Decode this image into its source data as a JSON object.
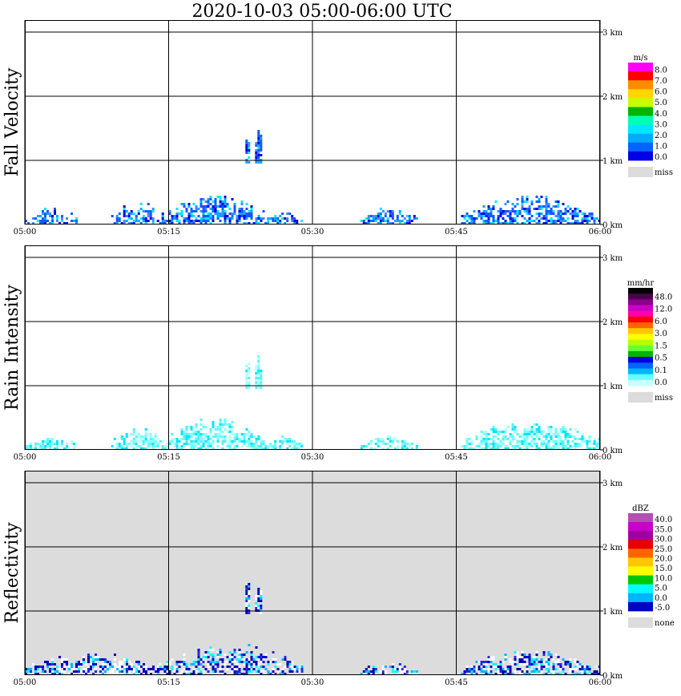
{
  "title": "2020-10-03   05:00-06:00 UTC",
  "time_ticks": [
    "05:00",
    "05:15",
    "05:30",
    "05:45",
    "06:00"
  ],
  "height_ticks": [
    "0 km",
    "1 km",
    "2 km",
    "3 km"
  ],
  "panels": [
    {
      "id": "fall-velocity",
      "ylabel": "Fall Velocity",
      "background": "#ffffff",
      "legend_unit": "m/s",
      "legend_colors": [
        "#ff00ff",
        "#ff0000",
        "#ff8c00",
        "#ffd700",
        "#c8ff00",
        "#00b400",
        "#00ffb4",
        "#00e6ff",
        "#00aaff",
        "#0064ff",
        "#0000e6"
      ],
      "legend_labels": [
        "8.0",
        "7.0",
        "6.0",
        "5.0",
        "4.0",
        "3.0",
        "2.0",
        "1.0",
        "0.0"
      ],
      "missing_label": "miss"
    },
    {
      "id": "rain-intensity",
      "ylabel": "Rain Intensity",
      "background": "#ffffff",
      "legend_unit": "mm/hr",
      "legend_colors": [
        "#000000",
        "#4b004b",
        "#8c008c",
        "#c800c8",
        "#ff00aa",
        "#ff0000",
        "#ff6400",
        "#ffc800",
        "#ffff00",
        "#b4ff00",
        "#64ff32",
        "#00b400",
        "#0000dc",
        "#0064ff",
        "#00b4ff",
        "#64ffff",
        "#c8ffff"
      ],
      "legend_labels": [
        "48.0",
        "12.0",
        "6.0",
        "3.0",
        "1.5",
        "0.5",
        "0.1",
        "0.0"
      ],
      "missing_label": "miss"
    },
    {
      "id": "reflectivity",
      "ylabel": "Reflectivity",
      "background": "#dcdcdc",
      "legend_unit": "dBZ",
      "legend_colors": [
        "#b450b4",
        "#c800c8",
        "#a000a0",
        "#e60000",
        "#ff6400",
        "#ffc800",
        "#ffff00",
        "#00c800",
        "#00ffff",
        "#00b4ff",
        "#0000c8"
      ],
      "legend_labels": [
        "40.0",
        "35.0",
        "30.0",
        "25.0",
        "20.0",
        "15.0",
        "10.0",
        "5.0",
        "0.0",
        "-5.0"
      ],
      "missing_label": "none"
    }
  ],
  "chart_data": [
    {
      "type": "heatmap",
      "title": "2020-10-03   05:00-06:00 UTC",
      "ylabel": "Fall Velocity",
      "xlim": [
        "05:00",
        "06:00"
      ],
      "ylim": [
        0,
        3.2
      ],
      "colorbar_unit": "m/s",
      "colorbar_ticks": [
        8.0,
        7.0,
        6.0,
        5.0,
        4.0,
        3.0,
        2.0,
        1.0,
        0.0
      ],
      "grid": true,
      "echo_regions": [
        {
          "t_start": 0.0,
          "t_end": 5.5,
          "top_km": 0.25,
          "typical_value": "1.0-2.0"
        },
        {
          "t_start": 9.0,
          "t_end": 14.5,
          "top_km": 0.35,
          "typical_value": "1.0-2.0"
        },
        {
          "t_start": 14.5,
          "t_end": 25.0,
          "top_km": 0.5,
          "typical_value": "0.0-2.0"
        },
        {
          "t_start": 25.0,
          "t_end": 29.0,
          "top_km": 0.2,
          "typical_value": "0.0-1.0"
        },
        {
          "t_start": 35.0,
          "t_end": 41.0,
          "top_km": 0.25,
          "typical_value": "1.0-2.0"
        },
        {
          "t_start": 45.5,
          "t_end": 60.0,
          "top_km": 0.45,
          "typical_value": "0.0-2.0"
        },
        {
          "t_start": 22.5,
          "t_end": 25.0,
          "base_km": 0.95,
          "top_km": 1.45,
          "typical_value": "0.0-2.0"
        }
      ]
    },
    {
      "type": "heatmap",
      "ylabel": "Rain Intensity",
      "xlim": [
        "05:00",
        "06:00"
      ],
      "ylim": [
        0,
        3.2
      ],
      "colorbar_unit": "mm/hr",
      "colorbar_ticks": [
        48.0,
        12.0,
        6.0,
        3.0,
        1.5,
        0.5,
        0.1,
        0.0
      ],
      "grid": true,
      "echo_regions": [
        {
          "t_start": 0.0,
          "t_end": 5.5,
          "top_km": 0.2,
          "typical_value": "0.0-0.1"
        },
        {
          "t_start": 9.0,
          "t_end": 14.5,
          "top_km": 0.35,
          "typical_value": "0.0-0.1"
        },
        {
          "t_start": 14.5,
          "t_end": 25.0,
          "top_km": 0.5,
          "typical_value": "0.0-0.5"
        },
        {
          "t_start": 25.0,
          "t_end": 29.0,
          "top_km": 0.2,
          "typical_value": "0.0-0.1"
        },
        {
          "t_start": 35.0,
          "t_end": 41.0,
          "top_km": 0.2,
          "typical_value": "0.0-0.1"
        },
        {
          "t_start": 45.5,
          "t_end": 60.0,
          "top_km": 0.45,
          "typical_value": "0.0-0.1"
        },
        {
          "t_start": 22.5,
          "t_end": 25.0,
          "base_km": 0.95,
          "top_km": 1.45,
          "typical_value": "0.0-0.1"
        }
      ]
    },
    {
      "type": "heatmap",
      "ylabel": "Reflectivity",
      "xlim": [
        "05:00",
        "06:00"
      ],
      "ylim": [
        0,
        3.2
      ],
      "colorbar_unit": "dBZ",
      "colorbar_ticks": [
        40.0,
        35.0,
        30.0,
        25.0,
        20.0,
        15.0,
        10.0,
        5.0,
        0.0,
        -5.0
      ],
      "grid": true,
      "echo_regions": [
        {
          "t_start": 0.0,
          "t_end": 14.0,
          "top_km": 0.35,
          "typical_value": "-5.0-0.0"
        },
        {
          "t_start": 14.0,
          "t_end": 29.0,
          "top_km": 0.5,
          "typical_value": "-5.0-10.0"
        },
        {
          "t_start": 35.0,
          "t_end": 41.0,
          "top_km": 0.2,
          "typical_value": "-5.0"
        },
        {
          "t_start": 45.5,
          "t_end": 60.0,
          "top_km": 0.4,
          "typical_value": "-5.0-0.0"
        },
        {
          "t_start": 22.5,
          "t_end": 25.0,
          "base_km": 0.95,
          "top_km": 1.45,
          "typical_value": "-5.0-5.0"
        }
      ]
    }
  ]
}
